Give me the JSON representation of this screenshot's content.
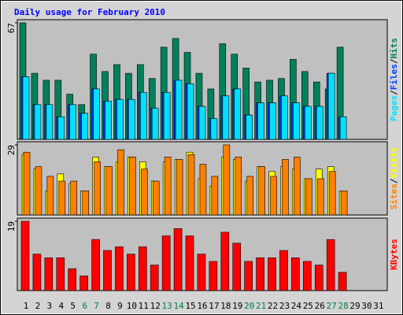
{
  "chart_data": [
    {
      "type": "bar",
      "title": "Daily usage for February 2010",
      "ylim": [
        0,
        67
      ],
      "yticks": [
        67
      ],
      "legend_separator": "/",
      "series": [
        {
          "name": "Hits",
          "color": "#00805c",
          "values": [
            67,
            38,
            34,
            34,
            26,
            20,
            49,
            39,
            43,
            38,
            43,
            35,
            53,
            58,
            50,
            38,
            29,
            55,
            49,
            41,
            33,
            34,
            35,
            46,
            39,
            33,
            29,
            53,
            null,
            null,
            null
          ]
        },
        {
          "name": "Files",
          "color": "#0040ff",
          "values": [
            36,
            20,
            20,
            13,
            20,
            15,
            29,
            22,
            23,
            23,
            27,
            18,
            27,
            34,
            32,
            19,
            12,
            25,
            29,
            14,
            21,
            21,
            25,
            21,
            19,
            19,
            38,
            13,
            null,
            null,
            null
          ]
        },
        {
          "name": "Pages",
          "color": "#00e0ff",
          "values": [
            36,
            20,
            20,
            13,
            20,
            15,
            29,
            22,
            23,
            23,
            27,
            18,
            27,
            34,
            32,
            19,
            12,
            25,
            29,
            14,
            21,
            21,
            25,
            21,
            19,
            19,
            38,
            13,
            null,
            null,
            null
          ]
        }
      ]
    },
    {
      "type": "bar",
      "ylim": [
        0,
        29
      ],
      "yticks": [
        29
      ],
      "legend_separator": "/",
      "series": [
        {
          "name": "Visits",
          "color": "#ffff00",
          "values": [
            25,
            19,
            10,
            17,
            13,
            10,
            24,
            20,
            22,
            24,
            22,
            14,
            22,
            23,
            26,
            15,
            12,
            24,
            23,
            14,
            20,
            18,
            20,
            19,
            15,
            19,
            20,
            10,
            null,
            null,
            null
          ]
        },
        {
          "name": "Sites",
          "color": "#ff8000",
          "values": [
            26,
            20,
            16,
            14,
            14,
            10,
            22,
            20,
            27,
            24,
            19,
            14,
            24,
            23,
            25,
            21,
            16,
            29,
            24,
            16,
            20,
            16,
            23,
            24,
            15,
            15,
            18,
            10,
            null,
            null,
            null
          ]
        }
      ]
    },
    {
      "type": "bar",
      "ylim": [
        0,
        19
      ],
      "yticks": [
        19
      ],
      "series": [
        {
          "name": "KBytes",
          "color": "#ff0000",
          "values": [
            19,
            10,
            9,
            9,
            6,
            4,
            14,
            11,
            12,
            10,
            12,
            7,
            15,
            17,
            15,
            10,
            8,
            16,
            13,
            8,
            9,
            9,
            11,
            9,
            8,
            7,
            14,
            5,
            null,
            null,
            null
          ]
        }
      ],
      "categories": [
        "1",
        "2",
        "3",
        "4",
        "5",
        "6",
        "7",
        "8",
        "9",
        "10",
        "11",
        "12",
        "13",
        "14",
        "15",
        "16",
        "17",
        "18",
        "19",
        "20",
        "21",
        "22",
        "23",
        "24",
        "25",
        "26",
        "27",
        "28",
        "29",
        "30",
        "31"
      ],
      "category_colors": [
        "#000000",
        "#000000",
        "#000000",
        "#000000",
        "#000000",
        "#008040",
        "#008040",
        "#000000",
        "#000000",
        "#000000",
        "#000000",
        "#000000",
        "#008040",
        "#008040",
        "#000000",
        "#000000",
        "#000000",
        "#000000",
        "#000000",
        "#008040",
        "#008040",
        "#000000",
        "#000000",
        "#000000",
        "#000000",
        "#000000",
        "#008040",
        "#008040",
        "#000000",
        "#000000",
        "#000000"
      ]
    }
  ]
}
